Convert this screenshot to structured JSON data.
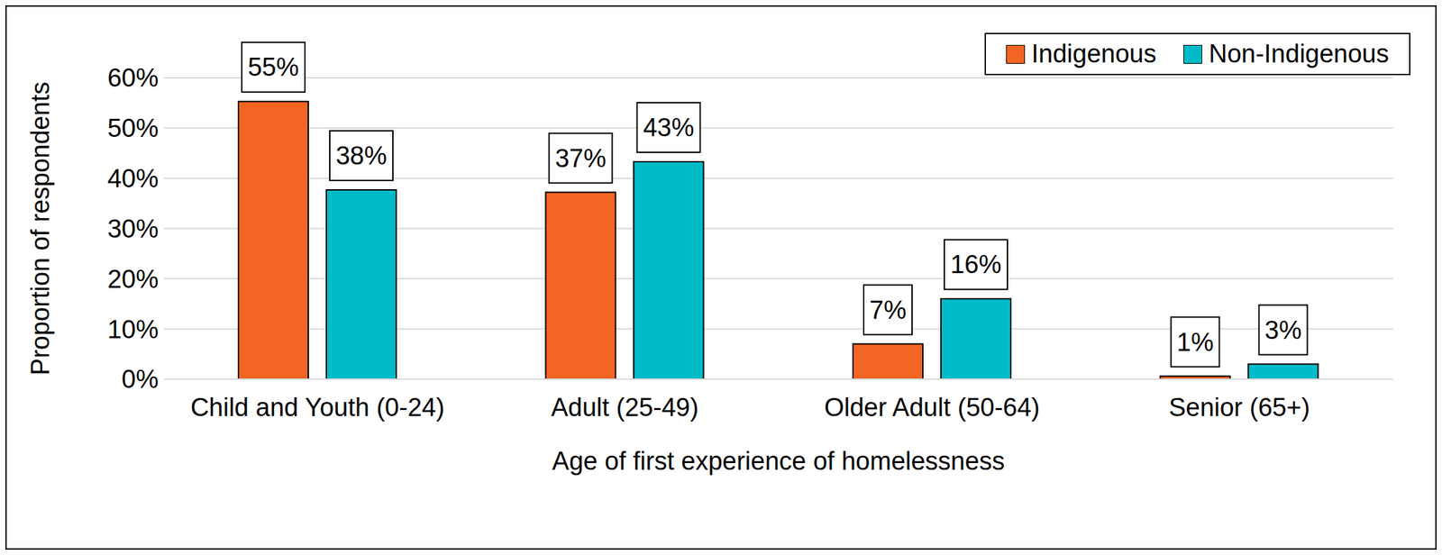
{
  "chart_data": {
    "type": "bar",
    "x_label": "Age of first experience of homelessness",
    "y_label": "Proportion of respondents",
    "categories": [
      "Child and Youth (0-24)",
      "Adult (25-49)",
      "Older Adult (50-64)",
      "Senior (65+)"
    ],
    "series": [
      {
        "name": "Indigenous",
        "color": "#f26522",
        "values": [
          55.3,
          37.2,
          7,
          0.6
        ],
        "value_labels": [
          "55%",
          "37%",
          "7%",
          "1%"
        ]
      },
      {
        "name": "Non-Indigenous",
        "color": "#00bcc8",
        "values": [
          37.7,
          43.3,
          16,
          3
        ],
        "value_labels": [
          "38%",
          "43%",
          "16%",
          "3%"
        ]
      }
    ],
    "ylim": [
      0,
      60
    ],
    "yticks": [
      {
        "value": 0,
        "label": "0%"
      },
      {
        "value": 10,
        "label": "10%"
      },
      {
        "value": 20,
        "label": "20%"
      },
      {
        "value": 30,
        "label": "30%"
      },
      {
        "value": 40,
        "label": "40%"
      },
      {
        "value": 50,
        "label": "50%"
      },
      {
        "value": 60,
        "label": "60%"
      }
    ],
    "grid": true,
    "legend": "upper right",
    "data_labels": true
  }
}
